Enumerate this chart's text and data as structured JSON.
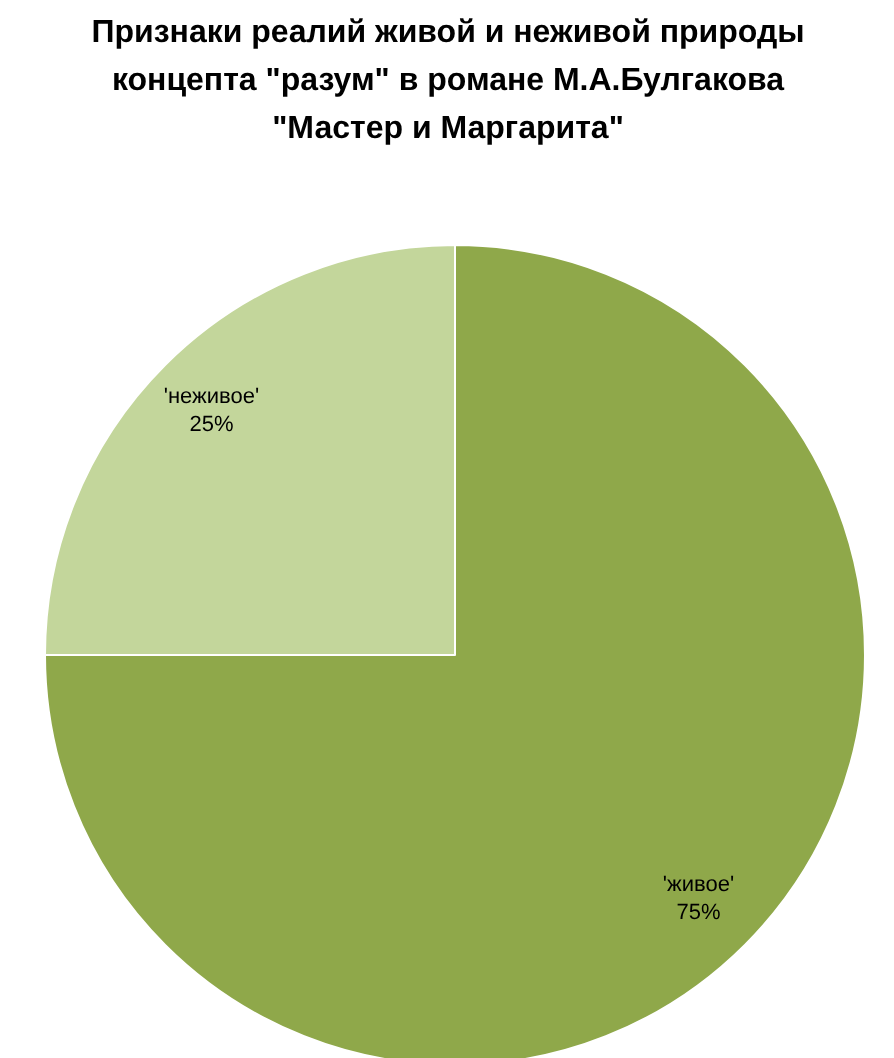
{
  "chart_data": {
    "type": "pie",
    "title": "Признаки реалий живой и неживой природы\nконцепта \"разум\" в романе М.А.Булгакова\n\"Мастер и Маргарита\"",
    "categories": [
      "'живое'",
      "'неживое'"
    ],
    "values": [
      75,
      25
    ],
    "colors": [
      "#8fa84a",
      "#c3d69b"
    ],
    "value_labels": [
      "75%",
      "25%"
    ]
  }
}
